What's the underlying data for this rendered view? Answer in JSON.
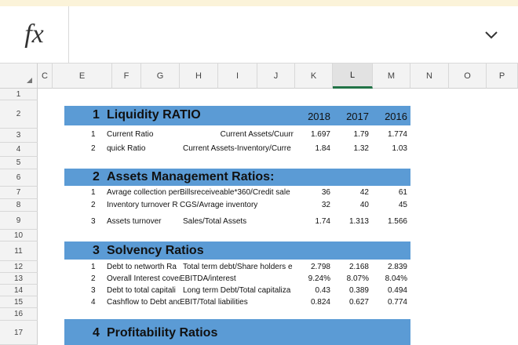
{
  "formula_bar": {
    "fx_label": "fx",
    "value": ""
  },
  "columns": [
    "C",
    "E",
    "F",
    "G",
    "H",
    "I",
    "J",
    "K",
    "L",
    "M",
    "N",
    "O",
    "P"
  ],
  "rows": [
    "1",
    "2",
    "3",
    "4",
    "5",
    "6",
    "7",
    "8",
    "9",
    "10",
    "11",
    "12",
    "13",
    "14",
    "15",
    "16",
    "17"
  ],
  "selected_column": "L",
  "sections": [
    {
      "num": "1",
      "title": "Liquidity RATIO",
      "years": [
        "2018",
        "2017",
        "2016"
      ]
    },
    {
      "num": "2",
      "title": "Assets Management Ratios:"
    },
    {
      "num": "3",
      "title": "Solvency Ratios"
    },
    {
      "num": "4",
      "title": "Profitability Ratios"
    }
  ],
  "data_rows": [
    {
      "n": "1",
      "name": "Current Ratio",
      "formula": "Current Assets/Cuurr",
      "k": "1.697",
      "l": "1.79",
      "m": "1.774"
    },
    {
      "n": "2",
      "name": "quick Ratio",
      "formula": "Current Assets-Inventory/Curre",
      "k": "1.84",
      "l": "1.32",
      "m": "1.03"
    },
    {
      "n": "1",
      "name": "Avrage collection per",
      "formula": "Billsreceiveable*360/Credit sale",
      "k": "36",
      "l": "42",
      "m": "61"
    },
    {
      "n": "2",
      "name": "Inventory turnover R",
      "formula": "CGS/Avrage inventory",
      "k": "32",
      "l": "40",
      "m": "45"
    },
    {
      "n": "3",
      "name": "Assets turnover",
      "formula": "Sales/Total Assets",
      "k": "1.74",
      "l": "1.313",
      "m": "1.566"
    },
    {
      "n": "1",
      "name": "Debt to networth Ra",
      "formula": "Total term debt/Share holders e",
      "k": "2.798",
      "l": "2.168",
      "m": "2.839"
    },
    {
      "n": "2",
      "name": "Overall Interest cover",
      "formula": "EBITDA/interest",
      "k": "9.24%",
      "l": "8.07%",
      "m": "8.04%"
    },
    {
      "n": "3",
      "name": "Debt to total capitali",
      "formula": "Long term Debt/Total capitaliza",
      "k": "0.43",
      "l": "0.389",
      "m": "0.494"
    },
    {
      "n": "4",
      "name": "Cashflow to Debt and",
      "formula": "EBIT/Total liabilities",
      "k": "0.824",
      "l": "0.627",
      "m": "0.774"
    }
  ],
  "colors": {
    "section_fill": "#5b9bd5",
    "selected_column_underline": "#217346"
  }
}
